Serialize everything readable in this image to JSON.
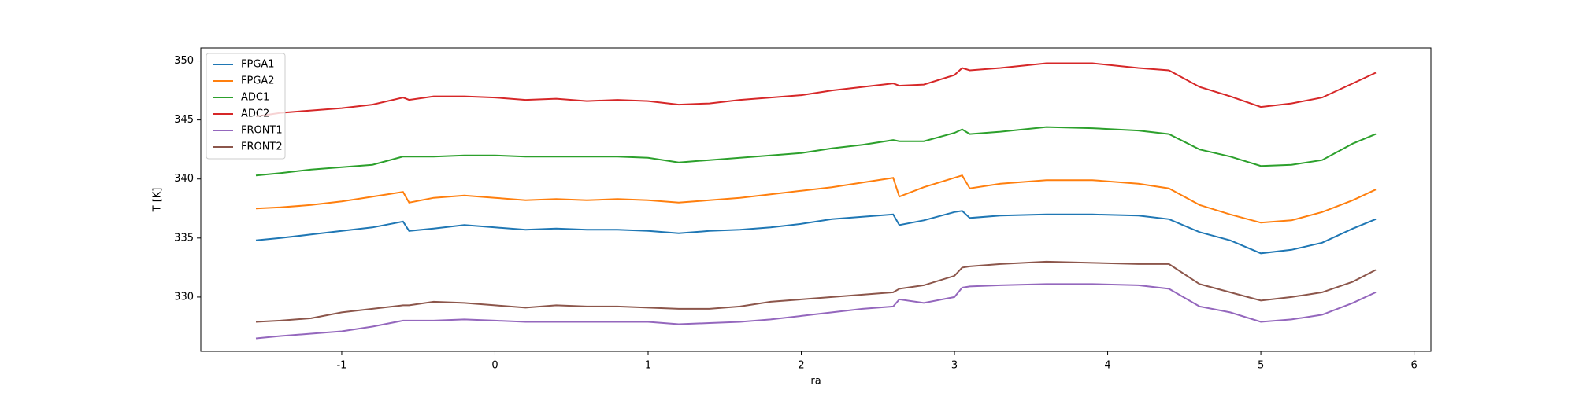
{
  "chart_data": {
    "type": "line",
    "xlabel": "ra",
    "ylabel": "T [K]",
    "x": [
      -1.56,
      -1.4,
      -1.2,
      -1.0,
      -0.8,
      -0.6,
      -0.56,
      -0.4,
      -0.2,
      0,
      0.2,
      0.4,
      0.6,
      0.8,
      1.0,
      1.2,
      1.4,
      1.6,
      1.8,
      2.0,
      2.2,
      2.4,
      2.6,
      2.64,
      2.8,
      3.0,
      3.05,
      3.1,
      3.3,
      3.6,
      3.9,
      4.2,
      4.4,
      4.6,
      4.8,
      5.0,
      5.2,
      5.4,
      5.6,
      5.75
    ],
    "series": [
      {
        "name": "FPGA1",
        "color": "#1f77b4",
        "values": [
          334.8,
          335.0,
          335.3,
          335.6,
          335.9,
          336.4,
          335.6,
          335.8,
          336.1,
          335.9,
          335.7,
          335.8,
          335.7,
          335.7,
          335.6,
          335.4,
          335.6,
          335.7,
          335.9,
          336.2,
          336.6,
          336.8,
          337.0,
          336.1,
          336.5,
          337.2,
          337.3,
          336.7,
          336.9,
          337.0,
          337.0,
          336.9,
          336.6,
          335.5,
          334.8,
          333.7,
          334.0,
          334.6,
          335.8,
          336.6
        ]
      },
      {
        "name": "FPGA2",
        "color": "#ff7f0e",
        "values": [
          337.5,
          337.6,
          337.8,
          338.1,
          338.5,
          338.9,
          338.0,
          338.4,
          338.6,
          338.4,
          338.2,
          338.3,
          338.2,
          338.3,
          338.2,
          338.0,
          338.2,
          338.4,
          338.7,
          339.0,
          339.3,
          339.7,
          340.1,
          338.5,
          339.3,
          340.1,
          340.3,
          339.2,
          339.6,
          339.9,
          339.9,
          339.6,
          339.2,
          337.8,
          337.0,
          336.3,
          336.5,
          337.2,
          338.2,
          339.1
        ]
      },
      {
        "name": "ADC1",
        "color": "#2ca02c",
        "values": [
          340.3,
          340.5,
          340.8,
          341.0,
          341.2,
          341.9,
          341.9,
          341.9,
          342.0,
          342.0,
          341.9,
          341.9,
          341.9,
          341.9,
          341.8,
          341.4,
          341.6,
          341.8,
          342.0,
          342.2,
          342.6,
          342.9,
          343.3,
          343.2,
          343.2,
          343.9,
          344.2,
          343.8,
          344.0,
          344.4,
          344.3,
          344.1,
          343.8,
          342.5,
          341.9,
          341.1,
          341.2,
          341.6,
          343.0,
          343.8
        ]
      },
      {
        "name": "ADC2",
        "color": "#d62728",
        "values": [
          345.3,
          345.6,
          345.8,
          346.0,
          346.3,
          346.9,
          346.7,
          347.0,
          347.0,
          346.9,
          346.7,
          346.8,
          346.6,
          346.7,
          346.6,
          346.3,
          346.4,
          346.7,
          346.9,
          347.1,
          347.5,
          347.8,
          348.1,
          347.9,
          348.0,
          348.8,
          349.4,
          349.2,
          349.4,
          349.8,
          349.8,
          349.4,
          349.2,
          347.8,
          347.0,
          346.1,
          346.4,
          346.9,
          348.1,
          349.0
        ]
      },
      {
        "name": "FRONT1",
        "color": "#9467bd",
        "values": [
          326.5,
          326.7,
          326.9,
          327.1,
          327.5,
          328.0,
          328.0,
          328.0,
          328.1,
          328.0,
          327.9,
          327.9,
          327.9,
          327.9,
          327.9,
          327.7,
          327.8,
          327.9,
          328.1,
          328.4,
          328.7,
          329.0,
          329.2,
          329.8,
          329.5,
          330.0,
          330.8,
          330.9,
          331.0,
          331.1,
          331.1,
          331.0,
          330.7,
          329.2,
          328.7,
          327.9,
          328.1,
          328.5,
          329.5,
          330.4
        ]
      },
      {
        "name": "FRONT2",
        "color": "#8c564b",
        "values": [
          327.9,
          328.0,
          328.2,
          328.7,
          329.0,
          329.3,
          329.3,
          329.6,
          329.5,
          329.3,
          329.1,
          329.3,
          329.2,
          329.2,
          329.1,
          329.0,
          329.0,
          329.2,
          329.6,
          329.8,
          330.0,
          330.2,
          330.4,
          330.7,
          331.0,
          331.8,
          332.5,
          332.6,
          332.8,
          333.0,
          332.9,
          332.8,
          332.8,
          331.1,
          330.4,
          329.7,
          330.0,
          330.4,
          331.3,
          332.3
        ]
      }
    ],
    "xlim": [
      -1.92,
      6.11
    ],
    "xticks": [
      -1,
      0,
      1,
      2,
      3,
      4,
      5,
      6
    ],
    "ylim": [
      325.4,
      351.1
    ],
    "yticks": [
      330,
      335,
      340,
      345,
      350
    ],
    "grid": false,
    "legend": "upper-left"
  }
}
